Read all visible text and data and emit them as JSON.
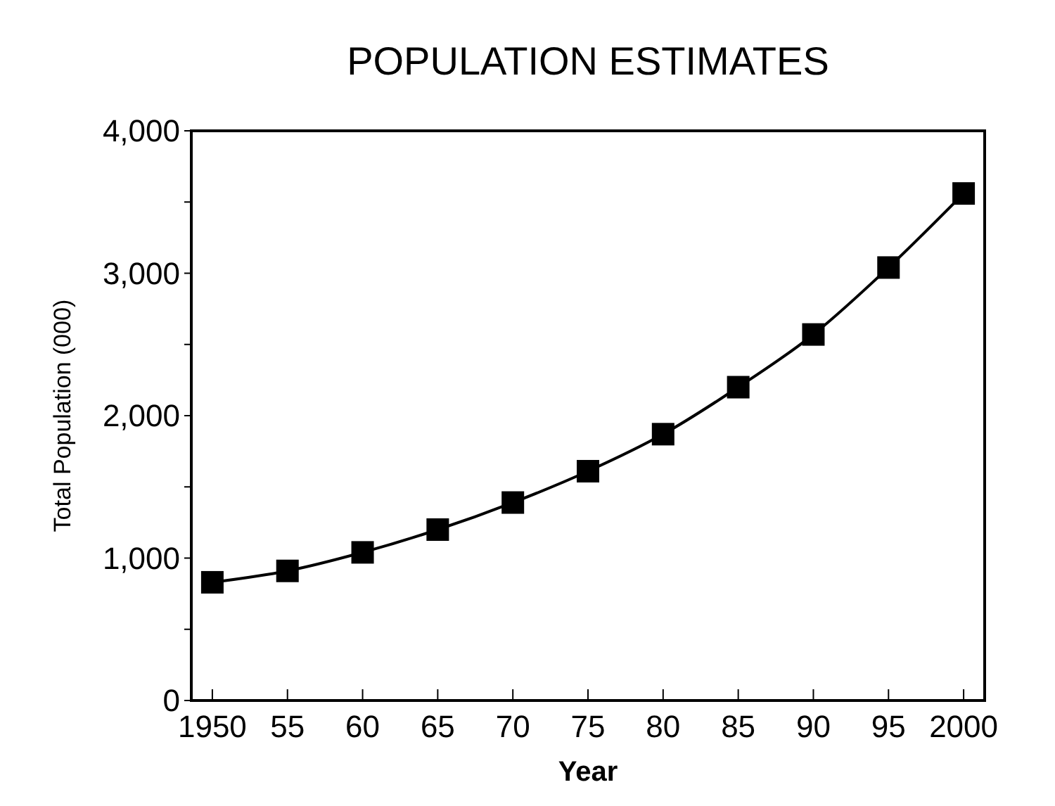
{
  "chart_data": {
    "type": "line",
    "title": "POPULATION ESTIMATES",
    "xlabel": "Year",
    "ylabel": "Total Population (000)",
    "x": [
      1950,
      1955,
      1960,
      1965,
      1970,
      1975,
      1980,
      1985,
      1990,
      1995,
      2000
    ],
    "series": [
      {
        "color": "#000000",
        "values": [
          830,
          910,
          1040,
          1200,
          1390,
          1610,
          1870,
          2200,
          2570,
          3040,
          3560
        ]
      }
    ],
    "xlim": [
      1948.6,
      2001.4
    ],
    "xticks": [
      1950,
      {
        "value": 1955,
        "label": "55"
      },
      {
        "value": 1960,
        "label": "60"
      },
      {
        "value": 1965,
        "label": "65"
      },
      {
        "value": 1970,
        "label": "70"
      },
      {
        "value": 1975,
        "label": "75"
      },
      {
        "value": 1980,
        "label": "80"
      },
      {
        "value": 1985,
        "label": "85"
      },
      {
        "value": 1990,
        "label": "90"
      },
      {
        "value": 1995,
        "label": "95"
      },
      2000
    ],
    "ylim": [
      0,
      4000
    ],
    "yticks": [
      0,
      {
        "value": 500,
        "label": null
      },
      {
        "value": 1000,
        "label": "1,000"
      },
      {
        "value": 1500,
        "label": null
      },
      {
        "value": 2000,
        "label": "2,000"
      },
      {
        "value": 2500,
        "label": null
      },
      {
        "value": 3000,
        "label": "3,000"
      },
      {
        "value": 3500,
        "label": null
      },
      {
        "value": 4000,
        "label": "4,000"
      }
    ],
    "marker": "square",
    "line_style": "solid",
    "grid": false
  }
}
